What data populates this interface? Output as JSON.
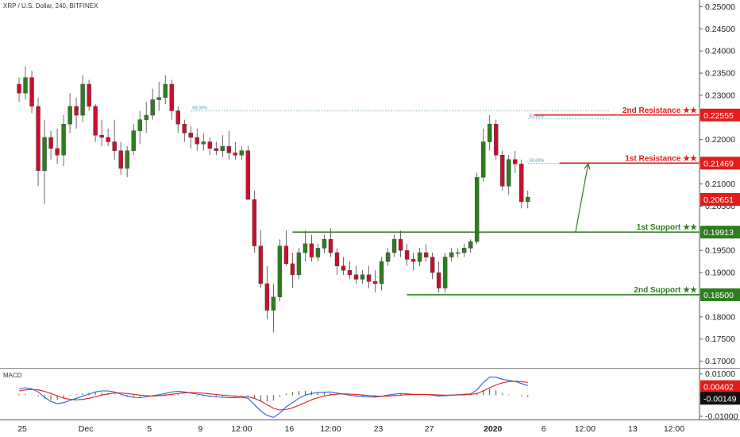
{
  "header": {
    "symbol": "XRP / U.S. Dollar, 240, BITFINEX"
  },
  "macd_panel": {
    "label": "MACD"
  },
  "chart_data": {
    "type": "candlestick",
    "y_ticks": [
      "0.25000",
      "0.24500",
      "0.24000",
      "0.23500",
      "0.23000",
      "0.22500",
      "0.22000",
      "0.21500",
      "0.21000",
      "0.20500",
      "0.20000",
      "0.19500",
      "0.19000",
      "0.18500",
      "0.18000",
      "0.17500",
      "0.17000"
    ],
    "y_tick_values": [
      0.25,
      0.245,
      0.24,
      0.235,
      0.23,
      0.225,
      0.22,
      0.215,
      0.21,
      0.205,
      0.2,
      0.195,
      0.19,
      0.185,
      0.18,
      0.175,
      0.17
    ],
    "x_ticks": [
      {
        "label": "25",
        "x": 0.5
      },
      {
        "label": "Dec",
        "x": 10.5
      },
      {
        "label": "5",
        "x": 20.5
      },
      {
        "label": "9",
        "x": 28.5
      },
      {
        "label": "12:00",
        "x": 35
      },
      {
        "label": "16",
        "x": 42.5
      },
      {
        "label": "12:00",
        "x": 49
      },
      {
        "label": "23",
        "x": 56.5
      },
      {
        "label": "27",
        "x": 64.5
      },
      {
        "label": "2020",
        "x": 74.5
      },
      {
        "label": "6",
        "x": 82.5
      },
      {
        "label": "12:00",
        "x": 89
      },
      {
        "label": "13",
        "x": 96.5
      },
      {
        "label": "12:00",
        "x": 103
      }
    ],
    "x_range": [
      -3,
      107
    ],
    "ylim": [
      0.1685,
      0.2515
    ],
    "candles_ohlc": [
      [
        0.2325,
        0.234,
        0.2285,
        0.2305
      ],
      [
        0.2305,
        0.2365,
        0.229,
        0.234
      ],
      [
        0.234,
        0.2355,
        0.226,
        0.2275
      ],
      [
        0.2275,
        0.2295,
        0.2095,
        0.213
      ],
      [
        0.213,
        0.2245,
        0.2055,
        0.2205
      ],
      [
        0.2205,
        0.222,
        0.2155,
        0.218
      ],
      [
        0.218,
        0.2225,
        0.2145,
        0.2165
      ],
      [
        0.2165,
        0.2255,
        0.214,
        0.2235
      ],
      [
        0.2235,
        0.2305,
        0.2215,
        0.2275
      ],
      [
        0.2275,
        0.2295,
        0.2225,
        0.2255
      ],
      [
        0.2255,
        0.2345,
        0.224,
        0.2325
      ],
      [
        0.2325,
        0.2335,
        0.2265,
        0.2275
      ],
      [
        0.2275,
        0.228,
        0.2195,
        0.221
      ],
      [
        0.221,
        0.2245,
        0.2185,
        0.2205
      ],
      [
        0.2205,
        0.2225,
        0.2185,
        0.2195
      ],
      [
        0.2195,
        0.2245,
        0.2155,
        0.2175
      ],
      [
        0.2175,
        0.2195,
        0.212,
        0.2135
      ],
      [
        0.2135,
        0.2185,
        0.2115,
        0.2175
      ],
      [
        0.2175,
        0.2235,
        0.2165,
        0.222
      ],
      [
        0.222,
        0.2265,
        0.219,
        0.2245
      ],
      [
        0.2245,
        0.2285,
        0.2215,
        0.2255
      ],
      [
        0.2255,
        0.2315,
        0.2245,
        0.229
      ],
      [
        0.229,
        0.233,
        0.2265,
        0.2295
      ],
      [
        0.2295,
        0.2345,
        0.228,
        0.2325
      ],
      [
        0.2325,
        0.2335,
        0.2245,
        0.2265
      ],
      [
        0.2265,
        0.2275,
        0.2215,
        0.2235
      ],
      [
        0.2235,
        0.2245,
        0.2195,
        0.2215
      ],
      [
        0.2215,
        0.223,
        0.218,
        0.2205
      ],
      [
        0.2205,
        0.2225,
        0.2175,
        0.219
      ],
      [
        0.219,
        0.2215,
        0.2175,
        0.2195
      ],
      [
        0.2195,
        0.2205,
        0.2165,
        0.218
      ],
      [
        0.218,
        0.2195,
        0.2165,
        0.2175
      ],
      [
        0.2175,
        0.221,
        0.216,
        0.2185
      ],
      [
        0.2185,
        0.222,
        0.2155,
        0.217
      ],
      [
        0.217,
        0.2195,
        0.2155,
        0.2165
      ],
      [
        0.2165,
        0.2185,
        0.2155,
        0.2175
      ],
      [
        0.2175,
        0.2185,
        0.2085,
        0.2065
      ],
      [
        0.2065,
        0.2085,
        0.1945,
        0.196
      ],
      [
        0.196,
        0.1995,
        0.1865,
        0.1875
      ],
      [
        0.1875,
        0.1915,
        0.1795,
        0.1815
      ],
      [
        0.1815,
        0.1875,
        0.1765,
        0.1845
      ],
      [
        0.1845,
        0.1975,
        0.1835,
        0.196
      ],
      [
        0.196,
        0.1995,
        0.1915,
        0.192
      ],
      [
        0.192,
        0.1945,
        0.1865,
        0.1895
      ],
      [
        0.1895,
        0.1955,
        0.1885,
        0.1945
      ],
      [
        0.1945,
        0.1995,
        0.1925,
        0.1965
      ],
      [
        0.1965,
        0.1985,
        0.1925,
        0.1935
      ],
      [
        0.1935,
        0.1965,
        0.1925,
        0.1955
      ],
      [
        0.1955,
        0.1985,
        0.1945,
        0.1975
      ],
      [
        0.1975,
        0.2,
        0.1935,
        0.1945
      ],
      [
        0.1945,
        0.1955,
        0.1895,
        0.1915
      ],
      [
        0.1915,
        0.1935,
        0.1895,
        0.1905
      ],
      [
        0.1905,
        0.1925,
        0.1885,
        0.1895
      ],
      [
        0.1895,
        0.1915,
        0.1875,
        0.1885
      ],
      [
        0.1885,
        0.1905,
        0.1875,
        0.1895
      ],
      [
        0.1895,
        0.1915,
        0.1865,
        0.188
      ],
      [
        0.188,
        0.1905,
        0.1855,
        0.1875
      ],
      [
        0.1875,
        0.1935,
        0.186,
        0.1925
      ],
      [
        0.1925,
        0.1955,
        0.1915,
        0.1945
      ],
      [
        0.1945,
        0.1985,
        0.1935,
        0.1975
      ],
      [
        0.1975,
        0.1995,
        0.1935,
        0.195
      ],
      [
        0.195,
        0.1965,
        0.1915,
        0.193
      ],
      [
        0.193,
        0.1945,
        0.1905,
        0.1925
      ],
      [
        0.1925,
        0.1955,
        0.1915,
        0.1945
      ],
      [
        0.1945,
        0.1965,
        0.1925,
        0.1935
      ],
      [
        0.1935,
        0.1945,
        0.1885,
        0.19
      ],
      [
        0.19,
        0.1925,
        0.1855,
        0.1865
      ],
      [
        0.1865,
        0.1945,
        0.1855,
        0.1935
      ],
      [
        0.1935,
        0.1955,
        0.1925,
        0.1945
      ],
      [
        0.1945,
        0.1955,
        0.1935,
        0.1945
      ],
      [
        0.1945,
        0.1965,
        0.1935,
        0.1955
      ],
      [
        0.1955,
        0.1975,
        0.1945,
        0.197
      ],
      [
        0.197,
        0.2125,
        0.1965,
        0.2115
      ],
      [
        0.2115,
        0.2225,
        0.2105,
        0.2195
      ],
      [
        0.2195,
        0.2255,
        0.2175,
        0.2235
      ],
      [
        0.2235,
        0.2245,
        0.2155,
        0.2165
      ],
      [
        0.2165,
        0.2175,
        0.2085,
        0.2095
      ],
      [
        0.2095,
        0.2165,
        0.2075,
        0.2155
      ],
      [
        0.2155,
        0.2175,
        0.2125,
        0.2145
      ],
      [
        0.2145,
        0.2155,
        0.2045,
        0.206
      ],
      [
        0.206,
        0.2085,
        0.2045,
        0.207
      ]
    ],
    "fib_levels": [
      {
        "label": "88.00%",
        "value": 0.22645,
        "x_start": 27,
        "x_end": 93
      },
      {
        "label": "61.80%",
        "value": 0.22465,
        "x_start": 80,
        "x_end": 93
      },
      {
        "label": "50.00%",
        "value": 0.21469,
        "x_start": 80,
        "x_end": 93
      }
    ],
    "levels": [
      {
        "name": "2nd Resistance ★★",
        "value": 0.22555,
        "price": "0.22555",
        "color": "#e31b1b",
        "x_start": 81
      },
      {
        "name": "1st Resistance ★★",
        "value": 0.21469,
        "price": "0.21469",
        "color": "#e31b1b",
        "x_start": 85
      },
      {
        "name": "1st Support ★★",
        "value": 0.19913,
        "price": "0.19913",
        "color": "#2e7d1f",
        "x_start": 43
      },
      {
        "name": "2nd Support ★★",
        "value": 0.185,
        "price": "0.18500",
        "color": "#2e7d1f",
        "x_start": 61
      }
    ],
    "current_price": {
      "value": 0.20651,
      "price": "0.20651",
      "color": "#e31b1b"
    },
    "arrow": {
      "from": [
        87.5,
        0.1991
      ],
      "to": [
        89.5,
        0.2146
      ],
      "color": "#2e7d1f"
    },
    "macd": {
      "y_ticks": [
        "0.01000",
        "0.00000",
        "-0.01000"
      ],
      "y_tick_values": [
        0.01,
        0.0,
        -0.01
      ],
      "ylim": [
        -0.0115,
        0.0125
      ],
      "macd_value": {
        "price": "0.00402",
        "value": 0.00402,
        "color": "#e31b1b"
      },
      "signal_value": {
        "price": "-0.00149",
        "value": -0.00149,
        "color": "#111111"
      },
      "macd_line": [
        0.003,
        0.0035,
        0.003,
        0.0015,
        -0.001,
        -0.003,
        -0.004,
        -0.0035,
        -0.0025,
        -0.0015,
        -0.0005,
        0.0005,
        0.0015,
        0.002,
        0.002,
        0.0015,
        0.0005,
        -0.0005,
        -0.001,
        -0.0012,
        -0.0008,
        -0.0003,
        0.0002,
        0.0008,
        0.0015,
        0.0018,
        0.0015,
        0.001,
        0.0005,
        0.0,
        -0.0005,
        -0.0008,
        -0.001,
        -0.0012,
        -0.0012,
        -0.001,
        -0.0015,
        -0.0045,
        -0.0075,
        -0.0095,
        -0.0105,
        -0.0085,
        -0.0055,
        -0.0035,
        -0.0015,
        0.0,
        0.0008,
        0.0012,
        0.0014,
        0.0015,
        0.001,
        0.0005,
        0.0,
        -0.0004,
        -0.0006,
        -0.0008,
        -0.0009,
        -0.0005,
        0.0,
        0.0005,
        0.0008,
        0.0006,
        0.0004,
        0.0004,
        0.0003,
        0.0,
        -0.0004,
        -0.0002,
        0.0,
        0.0002,
        0.0004,
        0.0006,
        0.0025,
        0.006,
        0.0085,
        0.0085,
        0.0075,
        0.007,
        0.0065,
        0.0055,
        0.0045
      ],
      "signal_line": [
        0.002,
        0.0025,
        0.0027,
        0.0025,
        0.0018,
        0.0008,
        -0.0004,
        -0.0014,
        -0.002,
        -0.0022,
        -0.002,
        -0.0015,
        -0.0008,
        0.0,
        0.0006,
        0.001,
        0.001,
        0.0008,
        0.0004,
        0.0,
        -0.0003,
        -0.0004,
        -0.0003,
        0.0,
        0.0004,
        0.0008,
        0.0011,
        0.0012,
        0.0011,
        0.0009,
        0.0006,
        0.0003,
        0.0,
        -0.0003,
        -0.0005,
        -0.0007,
        -0.0008,
        -0.0015,
        -0.0028,
        -0.0045,
        -0.0062,
        -0.007,
        -0.0068,
        -0.006,
        -0.0048,
        -0.0035,
        -0.0022,
        -0.0012,
        -0.0004,
        0.0002,
        0.0005,
        0.0006,
        0.0005,
        0.0003,
        0.0001,
        -0.0002,
        -0.0004,
        -0.0005,
        -0.0004,
        -0.0002,
        0.0,
        0.0002,
        0.0003,
        0.0003,
        0.0003,
        0.0002,
        0.0001,
        0.0,
        0.0,
        0.0001,
        0.0002,
        0.0003,
        0.0008,
        0.002,
        0.0035,
        0.0048,
        0.0058,
        0.0064,
        0.0066,
        0.0064,
        0.006
      ],
      "macd_color": "#2a62d6",
      "signal_color": "#e31b1b",
      "hist_color": "#555555"
    }
  }
}
